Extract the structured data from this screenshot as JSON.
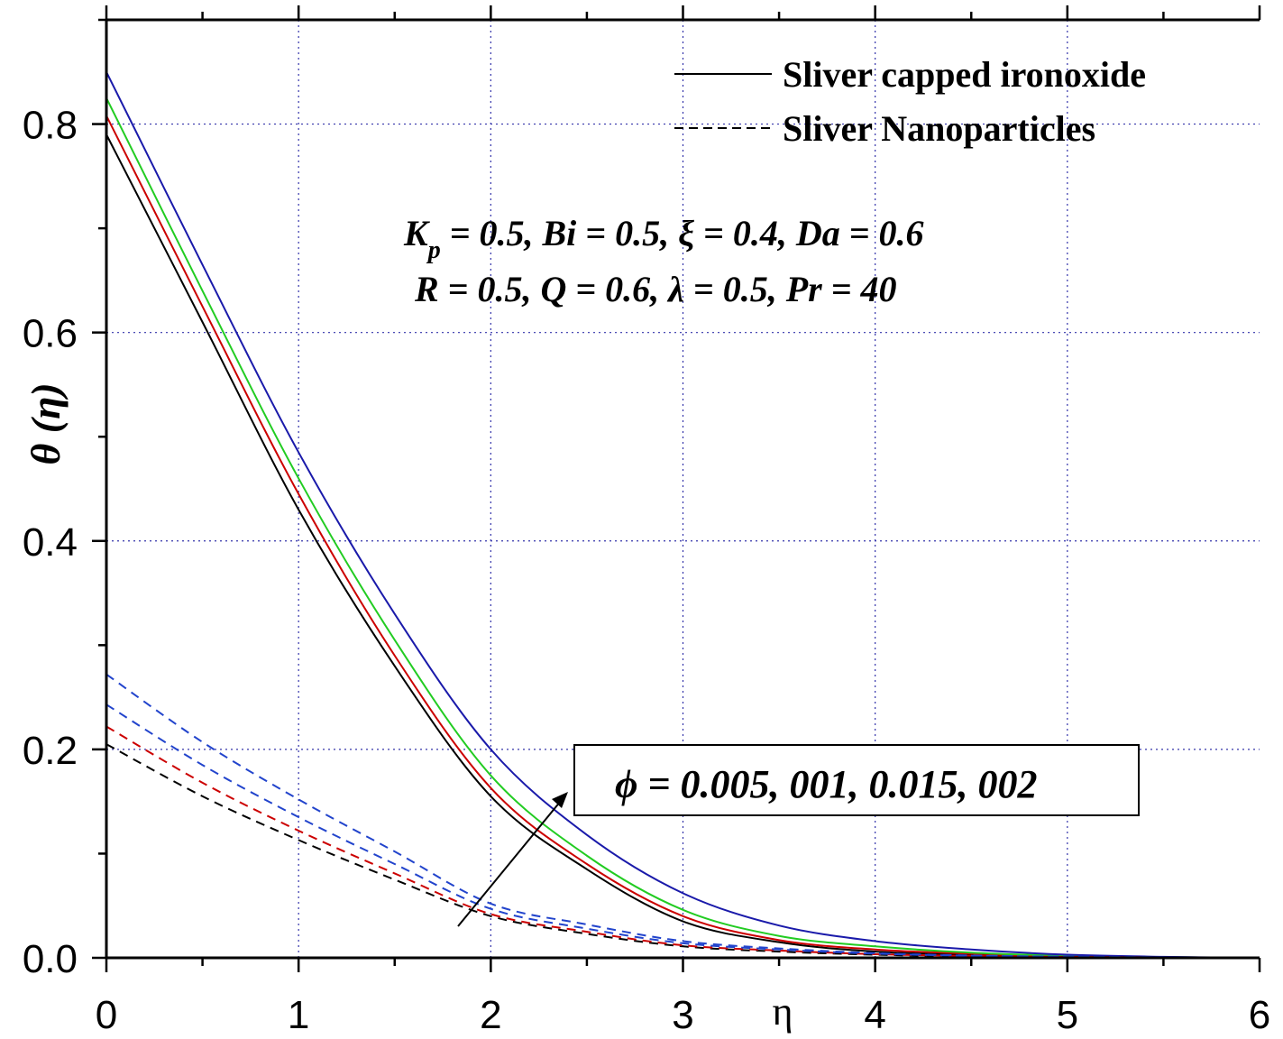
{
  "chart_data": {
    "type": "line",
    "title": "",
    "xlabel": "η",
    "ylabel": "θ (η)",
    "xlim": [
      0,
      6
    ],
    "ylim": [
      0,
      0.9
    ],
    "x_ticks": [
      "0",
      "1",
      "2",
      "3",
      "4",
      "5",
      "6"
    ],
    "y_ticks": [
      "0.0",
      "0.2",
      "0.4",
      "0.6",
      "0.8"
    ],
    "grid": true,
    "legend": {
      "position": "top-right",
      "entries": [
        {
          "label": "Sliver capped ironoxide",
          "style": "solid"
        },
        {
          "label": "Sliver Nanoparticles",
          "style": "dashed"
        }
      ]
    },
    "parameters_line1": "K",
    "parameters_line1_sub": "p",
    "parameters_line1_rest": " = 0.5, Bi = 0.5, ξ = 0.4, Da = 0.6",
    "parameters_line2": "R = 0.5, Q = 0.6, λ = 0.5, Pr = 40",
    "annotation": "ϕ = 0.005, 001, 0.015, 002",
    "x": [
      0,
      0.5,
      1,
      1.5,
      2,
      2.5,
      3,
      3.5,
      4,
      4.5,
      5,
      5.5,
      6
    ],
    "series": [
      {
        "name": "Sliver capped ironoxide ϕ=0.005",
        "style": "solid",
        "color": "#000000",
        "values": [
          0.79,
          0.61,
          0.43,
          0.28,
          0.155,
          0.085,
          0.035,
          0.015,
          0.006,
          0.003,
          0.001,
          0.0005,
          0
        ]
      },
      {
        "name": "Sliver capped ironoxide ϕ=001",
        "style": "solid",
        "color": "#cc0000",
        "values": [
          0.808,
          0.625,
          0.445,
          0.29,
          0.163,
          0.09,
          0.04,
          0.017,
          0.008,
          0.004,
          0.002,
          0.0007,
          0
        ]
      },
      {
        "name": "Sliver capped ironoxide ϕ=0.015",
        "style": "solid",
        "color": "#22cc22",
        "values": [
          0.825,
          0.64,
          0.46,
          0.305,
          0.175,
          0.098,
          0.046,
          0.021,
          0.011,
          0.005,
          0.002,
          0.0008,
          0
        ]
      },
      {
        "name": "Sliver capped ironoxide ϕ=002",
        "style": "solid",
        "color": "#1a1aaa",
        "values": [
          0.85,
          0.665,
          0.485,
          0.33,
          0.2,
          0.118,
          0.062,
          0.031,
          0.016,
          0.008,
          0.003,
          0.001,
          0
        ]
      },
      {
        "name": "Sliver Nanoparticles ϕ=0.005",
        "style": "dashed",
        "color": "#000000",
        "values": [
          0.205,
          0.155,
          0.113,
          0.075,
          0.04,
          0.023,
          0.011,
          0.006,
          0.003,
          0.0015,
          0.0008,
          0.0004,
          0
        ]
      },
      {
        "name": "Sliver Nanoparticles ϕ=001",
        "style": "dashed",
        "color": "#cc0000",
        "values": [
          0.222,
          0.168,
          0.122,
          0.081,
          0.042,
          0.025,
          0.012,
          0.007,
          0.0035,
          0.0018,
          0.0009,
          0.0004,
          0
        ]
      },
      {
        "name": "Sliver Nanoparticles ϕ=0.015",
        "style": "dashed",
        "color": "#2244cc",
        "values": [
          0.243,
          0.185,
          0.135,
          0.09,
          0.047,
          0.028,
          0.014,
          0.008,
          0.004,
          0.002,
          0.001,
          0.0005,
          0
        ]
      },
      {
        "name": "Sliver Nanoparticles ϕ=002",
        "style": "dashed",
        "color": "#2244cc",
        "values": [
          0.272,
          0.207,
          0.152,
          0.102,
          0.052,
          0.032,
          0.016,
          0.009,
          0.0045,
          0.0022,
          0.0011,
          0.0005,
          0
        ]
      }
    ]
  }
}
